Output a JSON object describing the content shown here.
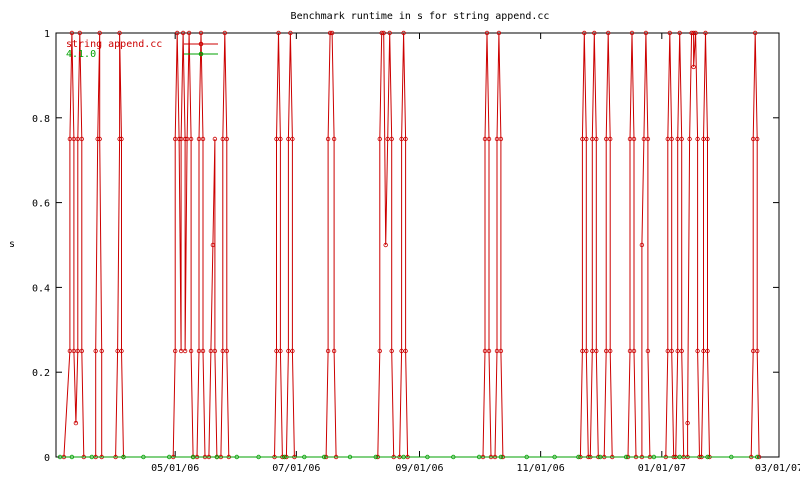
{
  "chart_data": {
    "type": "line",
    "title": "Benchmark runtime in s for string append.cc",
    "xlabel": "",
    "ylabel": "s",
    "ylim": [
      0,
      1
    ],
    "xlim": [
      "2006-03-02",
      "2007-03-01"
    ],
    "yticks": [
      "0",
      "0.2",
      "0.4",
      "0.6",
      "0.8",
      "1"
    ],
    "xticks": [
      {
        "date": "2006-05-01",
        "label": "05/01/06"
      },
      {
        "date": "2006-07-01",
        "label": "07/01/06"
      },
      {
        "date": "2006-09-01",
        "label": "09/01/06"
      },
      {
        "date": "2006-11-01",
        "label": "11/01/06"
      },
      {
        "date": "2007-01-01",
        "label": "01/01/07"
      },
      {
        "date": "2007-03-01",
        "label": "03/01/07"
      }
    ],
    "legend_position": "top-left",
    "series": [
      {
        "name": "string append.cc",
        "color": "#cc0000",
        "marker": "circle",
        "points": [
          [
            "2006-03-06",
            0
          ],
          [
            "2006-03-09",
            0.25
          ],
          [
            "2006-03-09",
            0.75
          ],
          [
            "2006-03-10",
            1
          ],
          [
            "2006-03-11",
            0.75
          ],
          [
            "2006-03-11",
            0.25
          ],
          [
            "2006-03-12",
            0.08
          ],
          [
            "2006-03-13",
            0.25
          ],
          [
            "2006-03-13",
            0.75
          ],
          [
            "2006-03-14",
            1
          ],
          [
            "2006-03-15",
            0.75
          ],
          [
            "2006-03-15",
            0.25
          ],
          [
            "2006-03-16",
            0
          ],
          [
            "2006-03-22",
            0
          ],
          [
            "2006-03-22",
            0.25
          ],
          [
            "2006-03-23",
            0.75
          ],
          [
            "2006-03-24",
            1
          ],
          [
            "2006-03-24",
            0.75
          ],
          [
            "2006-03-25",
            0.25
          ],
          [
            "2006-03-25",
            0
          ],
          [
            "2006-04-01",
            0
          ],
          [
            "2006-04-02",
            0.25
          ],
          [
            "2006-04-03",
            0.75
          ],
          [
            "2006-04-03",
            1
          ],
          [
            "2006-04-04",
            0.75
          ],
          [
            "2006-04-04",
            0.25
          ],
          [
            "2006-04-05",
            0
          ],
          [
            "2006-04-30",
            0
          ],
          [
            "2006-05-01",
            0.25
          ],
          [
            "2006-05-01",
            0.75
          ],
          [
            "2006-05-02",
            1
          ],
          [
            "2006-05-03",
            0.75
          ],
          [
            "2006-05-04",
            0.25
          ],
          [
            "2006-05-04",
            0.75
          ],
          [
            "2006-05-05",
            1
          ],
          [
            "2006-05-06",
            0.75
          ],
          [
            "2006-05-06",
            0.25
          ],
          [
            "2006-05-07",
            0.75
          ],
          [
            "2006-05-08",
            1
          ],
          [
            "2006-05-09",
            0.75
          ],
          [
            "2006-05-09",
            0.25
          ],
          [
            "2006-05-10",
            0
          ],
          [
            "2006-05-12",
            0
          ],
          [
            "2006-05-13",
            0.25
          ],
          [
            "2006-05-13",
            0.75
          ],
          [
            "2006-05-14",
            1
          ],
          [
            "2006-05-15",
            0.75
          ],
          [
            "2006-05-15",
            0.25
          ],
          [
            "2006-05-16",
            0
          ],
          [
            "2006-05-18",
            0
          ],
          [
            "2006-05-19",
            0.25
          ],
          [
            "2006-05-20",
            0.5
          ],
          [
            "2006-05-21",
            0.75
          ],
          [
            "2006-05-21",
            0.25
          ],
          [
            "2006-05-22",
            0
          ],
          [
            "2006-05-24",
            0
          ],
          [
            "2006-05-25",
            0.25
          ],
          [
            "2006-05-25",
            0.75
          ],
          [
            "2006-05-26",
            1
          ],
          [
            "2006-05-27",
            0.75
          ],
          [
            "2006-05-27",
            0.25
          ],
          [
            "2006-05-28",
            0
          ],
          [
            "2006-06-20",
            0
          ],
          [
            "2006-06-21",
            0.25
          ],
          [
            "2006-06-21",
            0.75
          ],
          [
            "2006-06-22",
            1
          ],
          [
            "2006-06-23",
            0.75
          ],
          [
            "2006-06-23",
            0.25
          ],
          [
            "2006-06-24",
            0
          ],
          [
            "2006-06-26",
            0
          ],
          [
            "2006-06-27",
            0.25
          ],
          [
            "2006-06-27",
            0.75
          ],
          [
            "2006-06-28",
            1
          ],
          [
            "2006-06-29",
            0.75
          ],
          [
            "2006-06-29",
            0.25
          ],
          [
            "2006-06-30",
            0
          ],
          [
            "2006-07-16",
            0
          ],
          [
            "2006-07-17",
            0.25
          ],
          [
            "2006-07-17",
            0.75
          ],
          [
            "2006-07-18",
            1
          ],
          [
            "2006-07-19",
            1
          ],
          [
            "2006-07-20",
            0.75
          ],
          [
            "2006-07-20",
            0.25
          ],
          [
            "2006-07-21",
            0
          ],
          [
            "2006-08-11",
            0
          ],
          [
            "2006-08-12",
            0.25
          ],
          [
            "2006-08-12",
            0.75
          ],
          [
            "2006-08-13",
            1
          ],
          [
            "2006-08-14",
            1
          ],
          [
            "2006-08-15",
            0.5
          ],
          [
            "2006-08-16",
            0.75
          ],
          [
            "2006-08-17",
            1
          ],
          [
            "2006-08-18",
            0.75
          ],
          [
            "2006-08-18",
            0.25
          ],
          [
            "2006-08-19",
            0
          ],
          [
            "2006-08-22",
            0
          ],
          [
            "2006-08-23",
            0.25
          ],
          [
            "2006-08-23",
            0.75
          ],
          [
            "2006-08-24",
            1
          ],
          [
            "2006-08-25",
            0.75
          ],
          [
            "2006-08-25",
            0.25
          ],
          [
            "2006-08-26",
            0
          ],
          [
            "2006-10-03",
            0
          ],
          [
            "2006-10-04",
            0.25
          ],
          [
            "2006-10-04",
            0.75
          ],
          [
            "2006-10-05",
            1
          ],
          [
            "2006-10-06",
            0.75
          ],
          [
            "2006-10-06",
            0.25
          ],
          [
            "2006-10-07",
            0
          ],
          [
            "2006-10-09",
            0
          ],
          [
            "2006-10-10",
            0.25
          ],
          [
            "2006-10-10",
            0.75
          ],
          [
            "2006-10-11",
            1
          ],
          [
            "2006-10-12",
            0.75
          ],
          [
            "2006-10-12",
            0.25
          ],
          [
            "2006-10-13",
            0
          ],
          [
            "2006-11-21",
            0
          ],
          [
            "2006-11-22",
            0.25
          ],
          [
            "2006-11-22",
            0.75
          ],
          [
            "2006-11-23",
            1
          ],
          [
            "2006-11-24",
            0.75
          ],
          [
            "2006-11-24",
            0.25
          ],
          [
            "2006-11-25",
            0
          ],
          [
            "2006-11-26",
            0
          ],
          [
            "2006-11-27",
            0.25
          ],
          [
            "2006-11-27",
            0.75
          ],
          [
            "2006-11-28",
            1
          ],
          [
            "2006-11-29",
            0.75
          ],
          [
            "2006-11-29",
            0.25
          ],
          [
            "2006-11-30",
            0
          ],
          [
            "2006-12-03",
            0
          ],
          [
            "2006-12-04",
            0.25
          ],
          [
            "2006-12-04",
            0.75
          ],
          [
            "2006-12-05",
            1
          ],
          [
            "2006-12-06",
            0.75
          ],
          [
            "2006-12-06",
            0.25
          ],
          [
            "2006-12-07",
            0
          ],
          [
            "2006-12-15",
            0
          ],
          [
            "2006-12-16",
            0.25
          ],
          [
            "2006-12-16",
            0.75
          ],
          [
            "2006-12-17",
            1
          ],
          [
            "2006-12-18",
            0.75
          ],
          [
            "2006-12-18",
            0.25
          ],
          [
            "2006-12-19",
            0
          ],
          [
            "2006-12-22",
            0
          ],
          [
            "2006-12-22",
            0.5
          ],
          [
            "2006-12-23",
            0.75
          ],
          [
            "2006-12-24",
            1
          ],
          [
            "2006-12-25",
            0.75
          ],
          [
            "2006-12-25",
            0.25
          ],
          [
            "2006-12-26",
            0
          ],
          [
            "2007-01-03",
            0
          ],
          [
            "2007-01-04",
            0.25
          ],
          [
            "2007-01-04",
            0.75
          ],
          [
            "2007-01-05",
            1
          ],
          [
            "2007-01-06",
            0.75
          ],
          [
            "2007-01-06",
            0.25
          ],
          [
            "2007-01-07",
            0
          ],
          [
            "2007-01-08",
            0
          ],
          [
            "2007-01-09",
            0.25
          ],
          [
            "2007-01-09",
            0.75
          ],
          [
            "2007-01-10",
            1
          ],
          [
            "2007-01-11",
            0.75
          ],
          [
            "2007-01-11",
            0.25
          ],
          [
            "2007-01-12",
            0
          ],
          [
            "2007-01-14",
            0
          ],
          [
            "2007-01-14",
            0.08
          ],
          [
            "2007-01-15",
            0.75
          ],
          [
            "2007-01-16",
            1
          ],
          [
            "2007-01-17",
            1
          ],
          [
            "2007-01-17",
            0.92
          ],
          [
            "2007-01-18",
            1
          ],
          [
            "2007-01-19",
            0.75
          ],
          [
            "2007-01-19",
            0.25
          ],
          [
            "2007-01-20",
            0
          ],
          [
            "2007-01-21",
            0
          ],
          [
            "2007-01-22",
            0.25
          ],
          [
            "2007-01-22",
            0.75
          ],
          [
            "2007-01-23",
            1
          ],
          [
            "2007-01-24",
            0.75
          ],
          [
            "2007-01-24",
            0.25
          ],
          [
            "2007-01-25",
            0
          ],
          [
            "2007-02-15",
            0
          ],
          [
            "2007-02-16",
            0.25
          ],
          [
            "2007-02-16",
            0.75
          ],
          [
            "2007-02-17",
            1
          ],
          [
            "2007-02-18",
            0.75
          ],
          [
            "2007-02-18",
            0.25
          ],
          [
            "2007-02-19",
            0
          ]
        ]
      },
      {
        "name": "4.1.0",
        "color": "#00a000",
        "marker": "circle",
        "points": [
          [
            "2006-03-04",
            0
          ],
          [
            "2006-03-10",
            0
          ],
          [
            "2006-03-20",
            0
          ],
          [
            "2006-04-05",
            0
          ],
          [
            "2006-04-15",
            0
          ],
          [
            "2006-04-28",
            0
          ],
          [
            "2006-05-10",
            0
          ],
          [
            "2006-05-22",
            0
          ],
          [
            "2006-06-01",
            0
          ],
          [
            "2006-06-12",
            0
          ],
          [
            "2006-06-25",
            0
          ],
          [
            "2006-07-05",
            0
          ],
          [
            "2006-07-15",
            0
          ],
          [
            "2006-07-28",
            0
          ],
          [
            "2006-08-10",
            0
          ],
          [
            "2006-08-24",
            0
          ],
          [
            "2006-09-05",
            0
          ],
          [
            "2006-09-18",
            0
          ],
          [
            "2006-10-01",
            0
          ],
          [
            "2006-10-12",
            0
          ],
          [
            "2006-10-25",
            0
          ],
          [
            "2006-11-08",
            0
          ],
          [
            "2006-11-20",
            0
          ],
          [
            "2006-12-01",
            0
          ],
          [
            "2006-12-14",
            0
          ],
          [
            "2006-12-28",
            0
          ],
          [
            "2007-01-10",
            0
          ],
          [
            "2007-01-24",
            0
          ],
          [
            "2007-02-05",
            0
          ],
          [
            "2007-02-18",
            0
          ]
        ]
      }
    ]
  }
}
